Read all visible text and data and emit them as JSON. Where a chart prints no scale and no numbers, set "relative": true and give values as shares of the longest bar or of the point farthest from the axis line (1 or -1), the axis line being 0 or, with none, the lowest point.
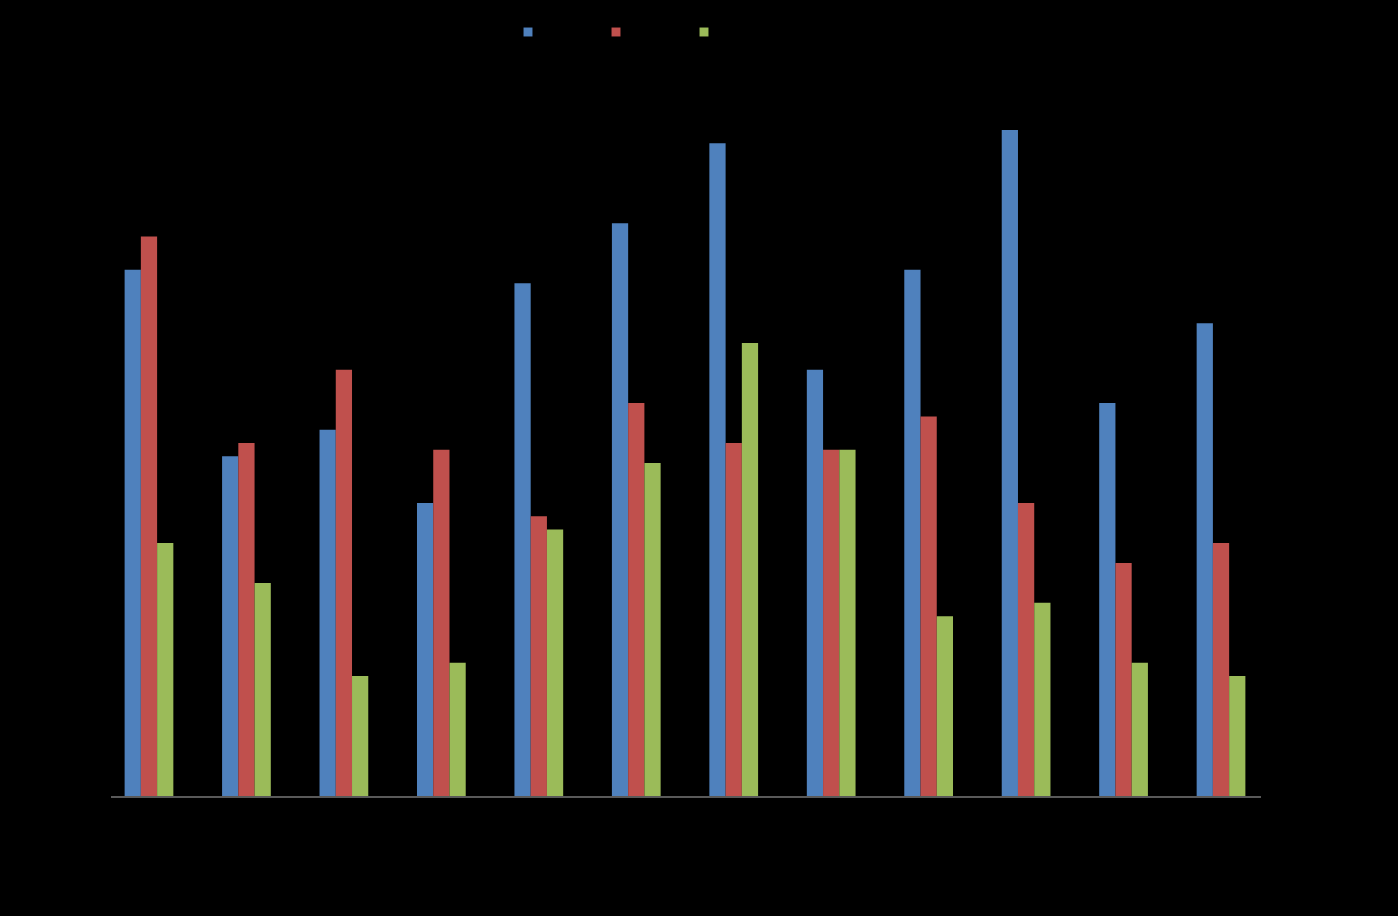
{
  "chart_data": {
    "type": "bar",
    "relative": true,
    "categories": [
      null,
      null,
      null,
      null,
      null,
      null,
      null,
      null,
      null,
      null,
      null,
      null
    ],
    "series": [
      {
        "color": "#4f81bd",
        "values": [
          0.79,
          0.51,
          0.55,
          0.44,
          0.77,
          0.86,
          0.98,
          0.64,
          0.79,
          1,
          0.59,
          0.71
        ]
      },
      {
        "color": "#c0504d",
        "values": [
          0.84,
          0.53,
          0.64,
          0.52,
          0.42,
          0.59,
          0.53,
          0.52,
          0.57,
          0.44,
          0.35,
          0.38
        ]
      },
      {
        "color": "#9bbb59",
        "values": [
          0.38,
          0.32,
          0.18,
          0.2,
          0.4,
          0.5,
          0.68,
          0.52,
          0.27,
          0.29,
          0.2,
          0.18
        ]
      }
    ]
  }
}
